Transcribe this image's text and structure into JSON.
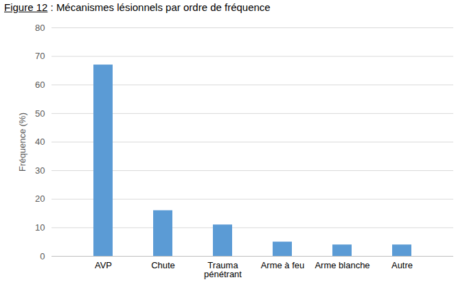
{
  "chart_data": {
    "type": "bar",
    "title": "Figure 12 : Mécanismes lésionnels par ordre de fréquence",
    "y_label": "Fréquence (%)",
    "categories": [
      "AVP",
      "Chute",
      "Trauma pénétrant",
      "Arme à feu",
      "Arme blanche",
      "Autre"
    ],
    "values": [
      67,
      16,
      11,
      5,
      4,
      4
    ],
    "color": "#5b9bd5",
    "ylim": [
      0,
      80
    ],
    "yticks": [
      0,
      10,
      20,
      30,
      40,
      50,
      60,
      70,
      80
    ],
    "grid": true
  }
}
